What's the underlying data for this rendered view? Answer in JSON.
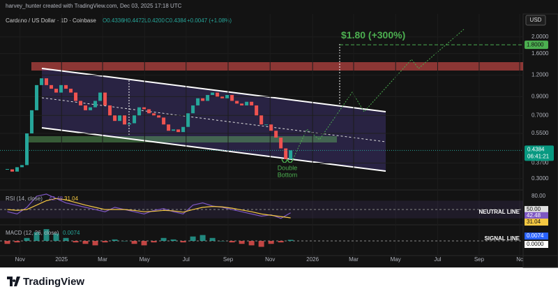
{
  "header": {
    "credit": "harvey_hunter created with TradingView.com, Dec 03, 2025 17:18 UTC",
    "currency": "USD"
  },
  "legend": {
    "symbol": "Cardano / US Dollar · 1D · Coinbase",
    "open": "O0.4336",
    "high": "H0.4472",
    "low": "L0.4200",
    "close": "C0.4384",
    "change": "+0.0047 (+1.08%)"
  },
  "chart_data": [
    {
      "type": "candlestick",
      "log_scale": true,
      "up_color": "#26a69a",
      "down_color": "#ef5350",
      "closes": [
        0.34,
        0.33,
        0.35,
        0.36,
        0.55,
        0.75,
        1.05,
        1.15,
        1.05,
        1.0,
        0.95,
        1.05,
        1.0,
        0.95,
        0.85,
        0.8,
        0.75,
        0.78,
        0.85,
        0.95,
        0.8,
        0.7,
        0.65,
        0.7,
        0.62,
        0.63,
        0.7,
        0.78,
        0.76,
        0.72,
        0.7,
        0.68,
        0.62,
        0.57,
        0.58,
        0.56,
        0.6,
        0.72,
        0.8,
        0.88,
        0.85,
        0.92,
        0.95,
        0.9,
        0.88,
        0.92,
        0.85,
        0.82,
        0.8,
        0.84,
        0.8,
        0.7,
        0.62,
        0.62,
        0.57,
        0.52,
        0.45,
        0.39,
        0.4384
      ],
      "ylim": [
        0.263,
        2.72
      ],
      "yticks": [
        {
          "value": 0.3,
          "label": "0.3000"
        },
        {
          "value": 0.37,
          "label": "0.3700"
        },
        {
          "value": 0.55,
          "label": "0.5500"
        },
        {
          "value": 0.7,
          "label": "0.7000"
        },
        {
          "value": 0.9,
          "label": "0.9000"
        },
        {
          "value": 1.2,
          "label": "1.2000"
        },
        {
          "value": 1.6,
          "label": "1.6000"
        },
        {
          "value": 2,
          "label": "2.0000"
        }
      ],
      "xlim": [
        -1.5,
        105.6
      ],
      "xticks": [
        {
          "value": 2.6,
          "label": "Nov"
        },
        {
          "value": 11.1,
          "label": "2025"
        },
        {
          "value": 19.5,
          "label": "Mar"
        },
        {
          "value": 28.1,
          "label": "May"
        },
        {
          "value": 36.6,
          "label": "Jul"
        },
        {
          "value": 45.2,
          "label": "Sep"
        },
        {
          "value": 53.8,
          "label": "Nov"
        },
        {
          "value": 62.5,
          "label": "2026"
        },
        {
          "value": 70.9,
          "label": "Mar"
        },
        {
          "value": 79.5,
          "label": "May"
        },
        {
          "value": 88.1,
          "label": "Jul"
        },
        {
          "value": 96.6,
          "label": "Sep"
        },
        {
          "value": 104.9,
          "label": "Nc"
        }
      ],
      "last_price": {
        "value": 0.4384,
        "label": "0.4384"
      },
      "countdown": "06:41:21",
      "target": {
        "value": 1.8,
        "label": "1.8000",
        "color": "#4caf50"
      },
      "annotations": {
        "target": "$1.80 (+300%)",
        "pattern": [
          "Double",
          "Bottom"
        ]
      }
    },
    {
      "type": "line",
      "title": "RSI (14, close)",
      "ylim": [
        20,
        88
      ],
      "yticks": [
        {
          "value": 80,
          "label": "80.00"
        }
      ],
      "level": {
        "value": 50,
        "label": "50.00",
        "name": "NEUTRAL LINE"
      },
      "series": [
        {
          "color": "#7e57c2",
          "values": [
            45,
            40,
            55,
            80,
            85,
            75,
            65,
            60,
            55,
            50,
            45,
            55,
            50,
            45,
            40,
            48,
            52,
            45,
            40,
            60,
            65,
            58,
            55,
            50,
            45,
            40,
            35,
            38,
            30,
            42.48
          ]
        },
        {
          "color": "#f5c842",
          "values": [
            50,
            48,
            50,
            60,
            70,
            75,
            72,
            66,
            60,
            55,
            50,
            50,
            50,
            48,
            45,
            46,
            48,
            47,
            44,
            50,
            55,
            57,
            56,
            53,
            49,
            45,
            40,
            37,
            34,
            31.04
          ]
        }
      ]
    },
    {
      "type": "bar",
      "title": "MACD (12, 26, close)",
      "ylim": [
        -0.09,
        0.09
      ],
      "level": {
        "value": 0,
        "label": "0.0000",
        "name": "SIGNAL LINE"
      },
      "up_color": "#26a69a",
      "down_color": "#ef5350",
      "values": [
        -0.02,
        -0.01,
        0.02,
        0.06,
        0.08,
        0.05,
        0.02,
        -0.01,
        -0.02,
        -0.03,
        -0.01,
        0.01,
        0,
        -0.02,
        -0.03,
        -0.01,
        0.02,
        0.01,
        -0.01,
        0.03,
        0.04,
        0.02,
        0,
        -0.01,
        -0.02,
        -0.03,
        -0.04,
        -0.02,
        -0.01,
        0.0074
      ]
    }
  ],
  "footer": {
    "brand": "TradingView"
  }
}
